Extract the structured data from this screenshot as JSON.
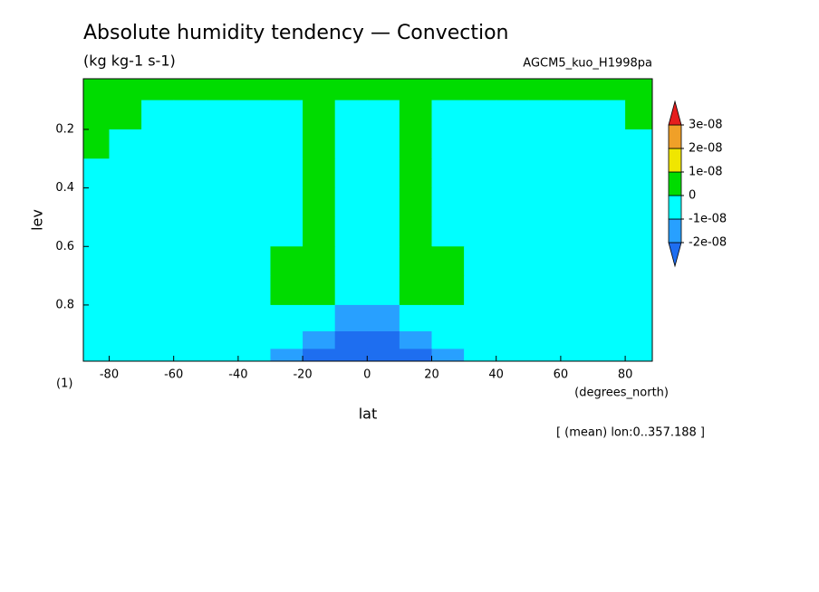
{
  "chart_data": {
    "type": "contour",
    "title": "Absolute humidity tendency — Convection",
    "subtitle": "(kg kg-1 s-1)",
    "dataset": "AGCM5_kuo_H1998pa",
    "xlabel": "lat",
    "xunit": "(degrees_north)",
    "ylabel": "lev",
    "ylabel_unit": "(1)",
    "footnote": "[ (mean) lon:0..357.188 ]",
    "xlim": [
      -88,
      88.4
    ],
    "xticks": [
      -80,
      -60,
      -40,
      -20,
      0,
      20,
      40,
      60,
      80
    ],
    "ylim": [
      0.992,
      0.027
    ],
    "yticks": [
      0.2,
      0.4,
      0.6,
      0.8
    ],
    "x": [
      -85,
      -75,
      -65,
      -55,
      -45,
      -35,
      -25,
      -15,
      -5,
      5,
      15,
      25,
      35,
      45,
      55,
      65,
      75,
      85
    ],
    "y": [
      0.05,
      0.15,
      0.25,
      0.35,
      0.45,
      0.55,
      0.65,
      0.75,
      0.85,
      0.93,
      0.97
    ],
    "z": [
      [
        3e-09,
        3e-09,
        3e-09,
        3e-09,
        3e-09,
        3e-09,
        3e-09,
        3e-09,
        3e-09,
        3e-09,
        3e-09,
        3e-09,
        3e-09,
        3e-09,
        3e-09,
        3e-09,
        3e-09,
        3e-09
      ],
      [
        3e-09,
        3e-09,
        -1e-09,
        -1e-09,
        -1e-09,
        -1e-09,
        -1e-09,
        3e-09,
        -1e-09,
        -1e-09,
        3e-09,
        -1e-09,
        -1e-09,
        -1e-09,
        -1e-09,
        -1e-09,
        -1e-09,
        3e-09
      ],
      [
        2e-09,
        -1e-09,
        -1e-09,
        -1e-09,
        -1e-09,
        -1e-09,
        -1e-09,
        3e-09,
        -1e-09,
        -1e-09,
        3e-09,
        -1e-09,
        -1e-09,
        -1e-09,
        -1e-09,
        -1e-09,
        -1e-09,
        -1e-09
      ],
      [
        -1e-09,
        -1e-09,
        -1e-09,
        -1e-09,
        -1e-09,
        -1e-09,
        -1e-09,
        3e-09,
        -2e-09,
        -2e-09,
        3e-09,
        -1e-09,
        -1e-09,
        -1e-09,
        -1e-09,
        -1e-09,
        -1e-09,
        -1e-09
      ],
      [
        -1e-09,
        -1e-09,
        -1e-09,
        -1e-09,
        -1e-09,
        -1e-09,
        -1e-09,
        3e-09,
        -3e-09,
        -3e-09,
        3e-09,
        -1e-09,
        -1e-09,
        -1e-09,
        -1e-09,
        -1e-09,
        -1e-09,
        -1e-09
      ],
      [
        -1e-09,
        -1e-09,
        -1e-09,
        -1e-09,
        -1e-09,
        -1e-09,
        -1e-09,
        3e-09,
        -3e-09,
        -3e-09,
        3e-09,
        -1e-09,
        -1e-09,
        -1e-09,
        -1e-09,
        -1e-09,
        -1e-09,
        -1e-09
      ],
      [
        -1e-09,
        -1e-09,
        -1e-09,
        -1e-09,
        -1e-09,
        -1e-09,
        2e-09,
        3e-09,
        -4e-09,
        -4e-09,
        3e-09,
        2e-09,
        -1e-09,
        -1e-09,
        -1e-09,
        -1e-09,
        -1e-09,
        -1e-09
      ],
      [
        -1e-09,
        -1e-09,
        -1e-09,
        -1e-09,
        -1e-09,
        -1e-09,
        2e-09,
        2e-09,
        -5e-09,
        -5e-09,
        2e-09,
        2e-09,
        -1e-09,
        -1e-09,
        -1e-09,
        -1e-09,
        -1e-09,
        -1e-09
      ],
      [
        -1e-09,
        -1e-09,
        -1e-09,
        -2e-09,
        -3e-09,
        -4e-09,
        -5e-09,
        -6e-09,
        -1.2e-08,
        -1.2e-08,
        -6e-09,
        -5e-09,
        -4e-09,
        -3e-09,
        -2e-09,
        -1e-09,
        -1e-09,
        -1e-09
      ],
      [
        -1e-09,
        -1e-09,
        -2e-09,
        -3e-09,
        -5e-09,
        -7e-09,
        -9e-09,
        -1.5e-08,
        -2.5e-08,
        -2.5e-08,
        -1.5e-08,
        -9e-09,
        -7e-09,
        -5e-09,
        -3e-09,
        -2e-09,
        -1e-09,
        -1e-09
      ],
      [
        -1e-09,
        -1e-09,
        -1e-09,
        -2e-09,
        -4e-09,
        -6e-09,
        -1.2e-08,
        -2.2e-08,
        -2.5e-08,
        -2.5e-08,
        -2.2e-08,
        -1.2e-08,
        -6e-09,
        -4e-09,
        -2e-09,
        -1e-09,
        -1e-09,
        -1e-09
      ]
    ],
    "levels": [
      {
        "value": -2e-08,
        "label": "-2e-08"
      },
      {
        "value": -1e-08,
        "label": "-1e-08"
      },
      0,
      {
        "value": 1e-08,
        "label": "1e-08"
      },
      {
        "value": 2e-08,
        "label": "2e-08"
      },
      {
        "value": 3e-08,
        "label": "3e-08"
      }
    ],
    "colors": [
      "#1e6ef0",
      "#28a0ff",
      "#00ffff",
      "#00dc00",
      "#f0e600",
      "#f0a028",
      "#e61e1e"
    ]
  }
}
